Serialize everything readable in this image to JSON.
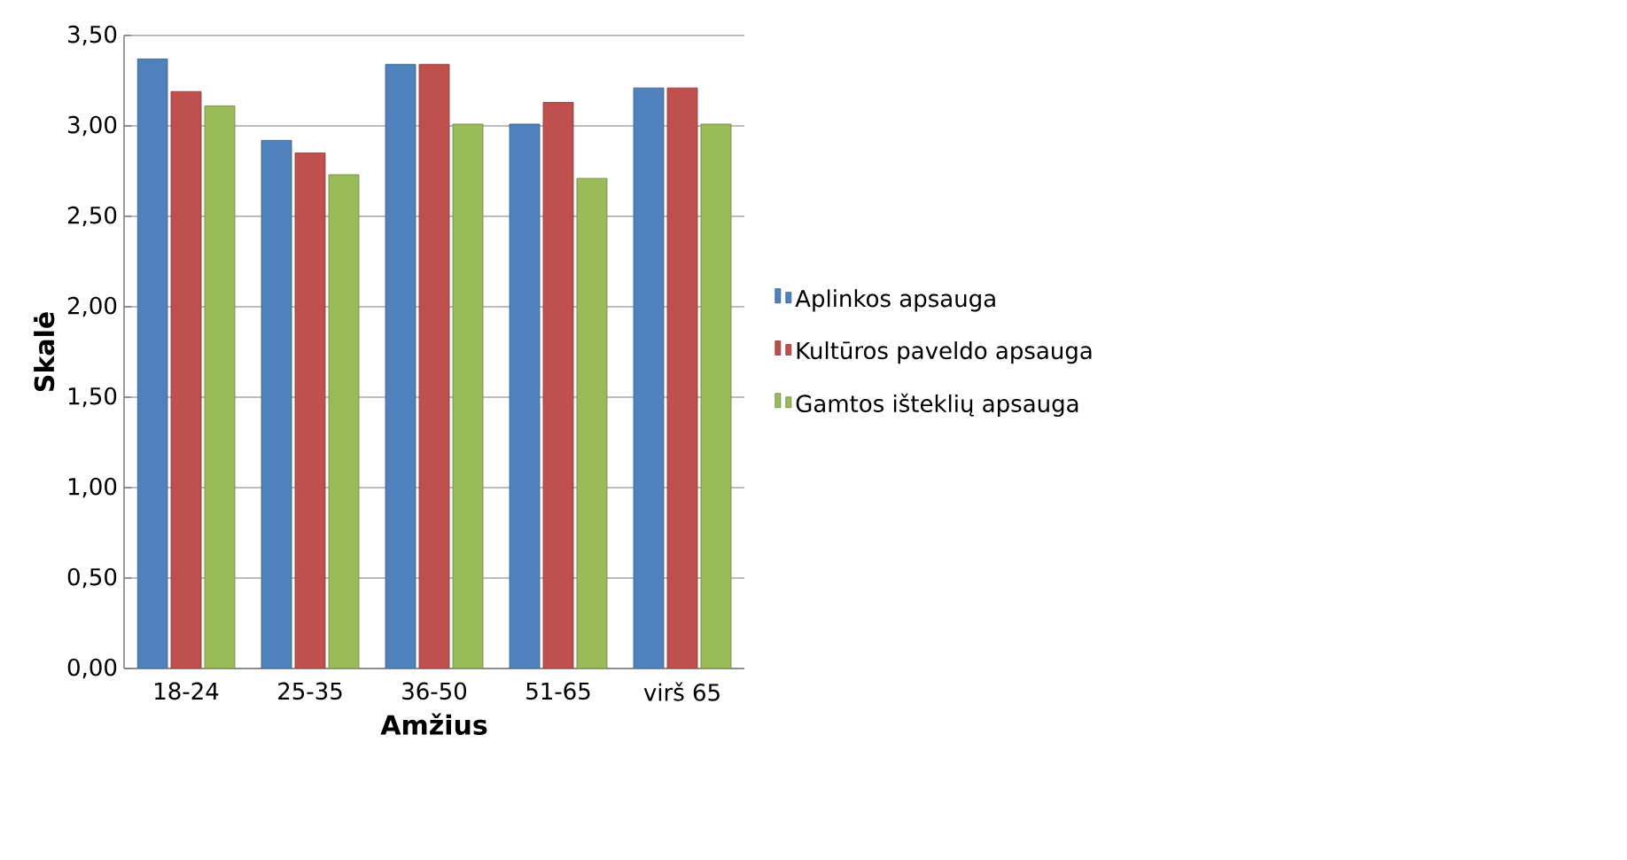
{
  "chart_data": {
    "type": "bar",
    "xlabel": "Amžius",
    "ylabel": "Skalė",
    "categories": [
      "18-24",
      "25-35",
      "36-50",
      "51-65",
      "virš 65"
    ],
    "series": [
      {
        "name": "Aplinkos apsauga",
        "color": "#4f81bd",
        "values": [
          3.37,
          2.92,
          3.34,
          3.01,
          3.21
        ]
      },
      {
        "name": "Kultūros paveldo apsauga",
        "color": "#c0504d",
        "values": [
          3.19,
          2.85,
          3.34,
          3.13,
          3.21
        ]
      },
      {
        "name": "Gamtos išteklių apsauga",
        "color": "#9bbb59",
        "values": [
          3.11,
          2.73,
          3.01,
          2.71,
          3.01
        ]
      }
    ],
    "ylim": [
      0,
      3.5
    ],
    "yticks": [
      {
        "value": 0,
        "label": "0,00"
      },
      {
        "value": 0.5,
        "label": "0,50"
      },
      {
        "value": 1,
        "label": "1,00"
      },
      {
        "value": 1.5,
        "label": "1,50"
      },
      {
        "value": 2,
        "label": "2,00"
      },
      {
        "value": 2.5,
        "label": "2,50"
      },
      {
        "value": 3,
        "label": "3,00"
      },
      {
        "value": 3.5,
        "label": "3,50"
      }
    ],
    "grid": "y",
    "legend": "right"
  }
}
